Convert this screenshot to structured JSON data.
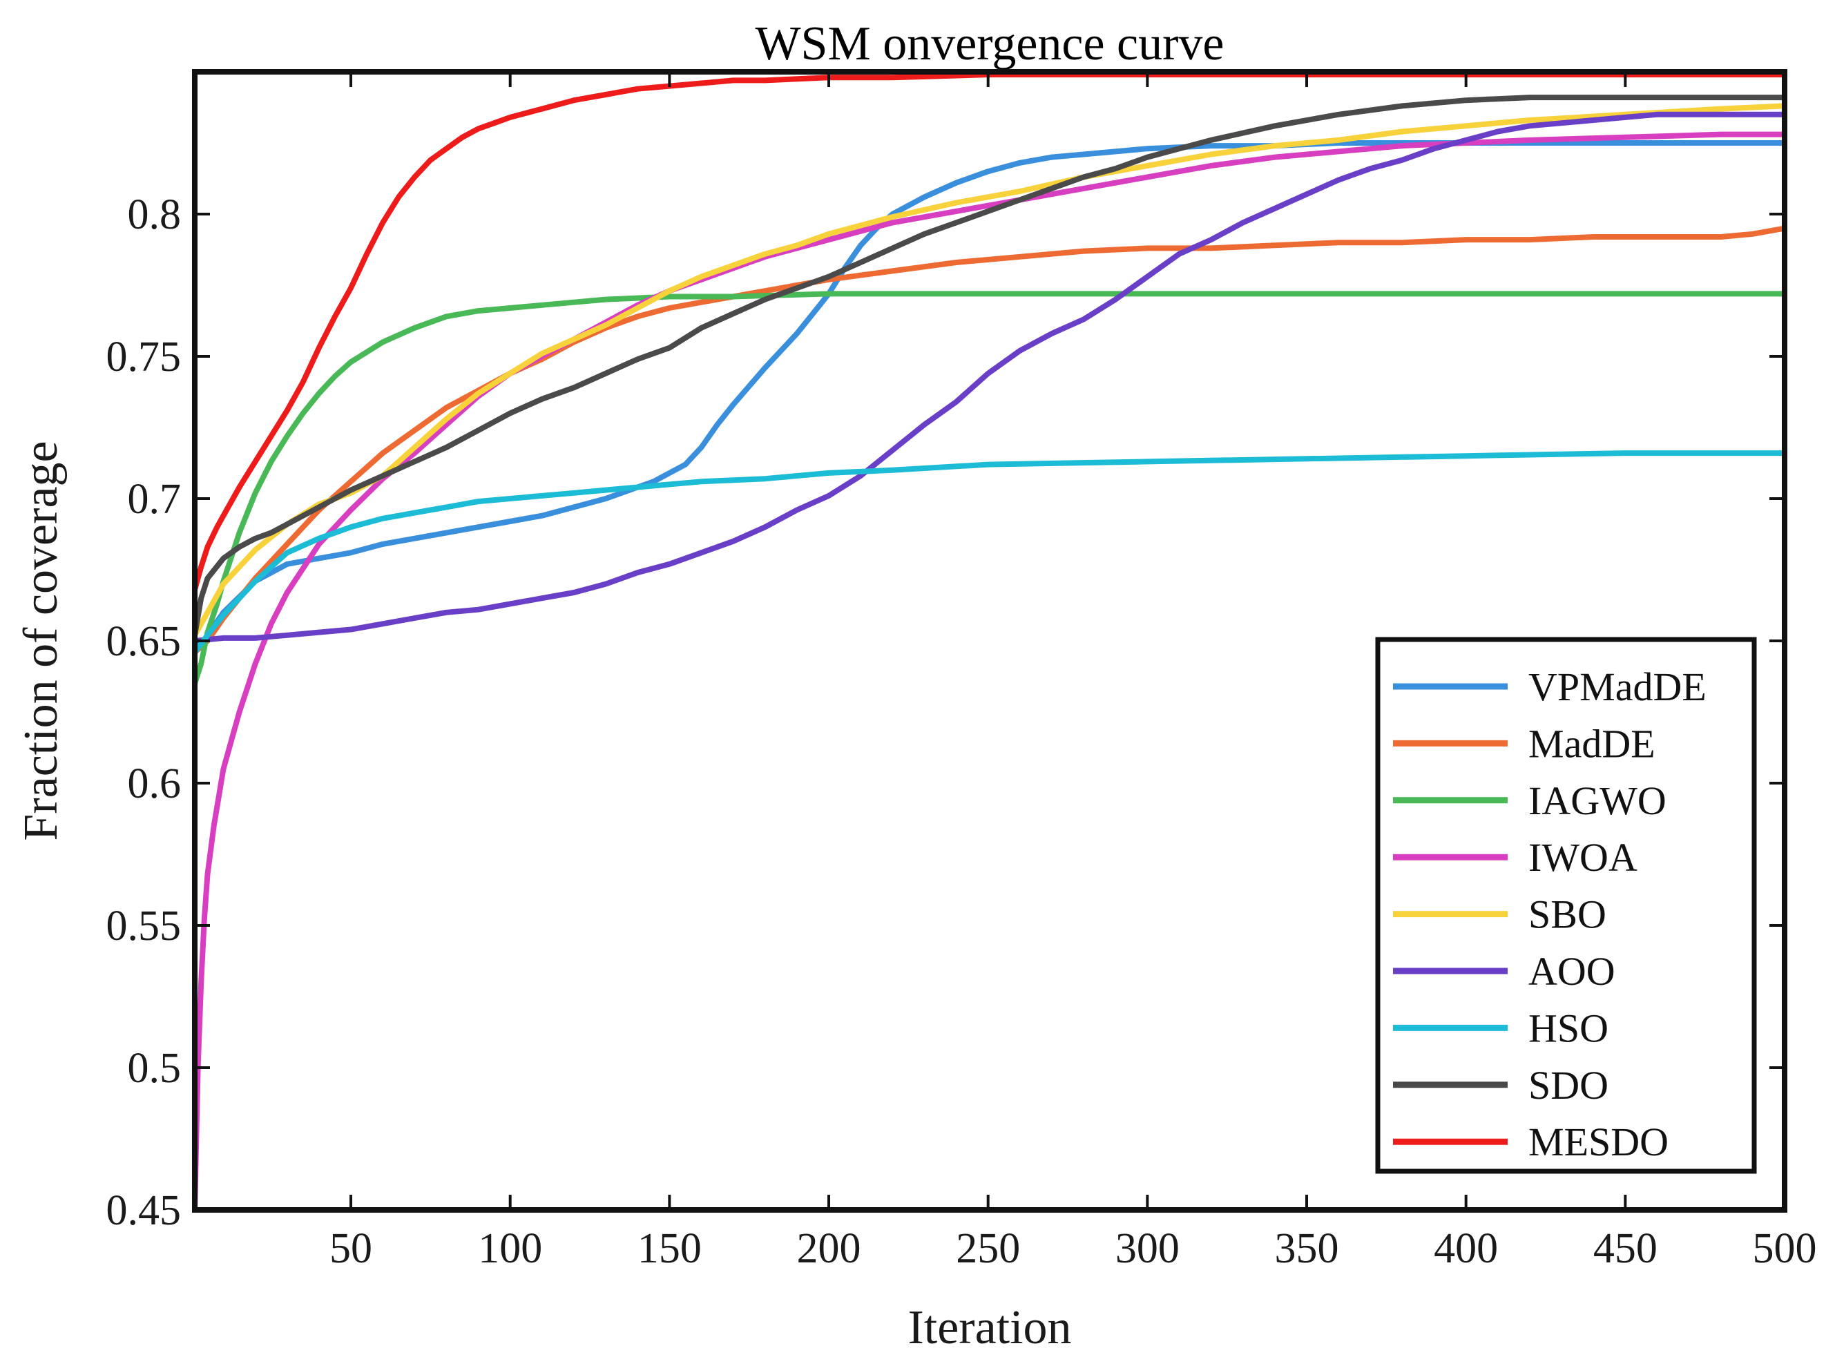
{
  "chart_data": {
    "type": "line",
    "title": "WSM onvergence curve",
    "xlabel": "Iteration",
    "ylabel": "Fraction of coverage",
    "xlim": [
      1,
      500
    ],
    "ylim": [
      0.45,
      0.85
    ],
    "xticks": [
      50,
      100,
      150,
      200,
      250,
      300,
      350,
      400,
      450,
      500
    ],
    "xtick_labels": [
      "50",
      "100",
      "150",
      "200",
      "250",
      "300",
      "350",
      "400",
      "450",
      "500"
    ],
    "yticks": [
      0.45,
      0.5,
      0.55,
      0.6,
      0.65,
      0.7,
      0.75,
      0.8
    ],
    "ytick_labels": [
      "0.45",
      "0.5",
      "0.55",
      "0.6",
      "0.65",
      "0.7",
      "0.75",
      "0.8"
    ],
    "grid": false,
    "legend_position": "bottom-right",
    "series": [
      {
        "name": "VPMadDE",
        "color": "#3a8fdc",
        "x": [
          1,
          5,
          10,
          20,
          30,
          40,
          50,
          60,
          70,
          80,
          90,
          100,
          110,
          120,
          130,
          140,
          145,
          150,
          155,
          160,
          165,
          170,
          180,
          190,
          195,
          200,
          205,
          210,
          215,
          220,
          230,
          240,
          250,
          260,
          270,
          280,
          290,
          300,
          320,
          340,
          360,
          380,
          400,
          420,
          450,
          480,
          500
        ],
        "y": [
          0.646,
          0.652,
          0.66,
          0.671,
          0.677,
          0.679,
          0.681,
          0.684,
          0.686,
          0.688,
          0.69,
          0.692,
          0.694,
          0.697,
          0.7,
          0.704,
          0.706,
          0.709,
          0.712,
          0.718,
          0.726,
          0.733,
          0.746,
          0.758,
          0.765,
          0.772,
          0.781,
          0.789,
          0.795,
          0.8,
          0.806,
          0.811,
          0.815,
          0.818,
          0.82,
          0.821,
          0.822,
          0.823,
          0.824,
          0.824,
          0.825,
          0.825,
          0.825,
          0.825,
          0.825,
          0.825,
          0.825
        ]
      },
      {
        "name": "MadDE",
        "color": "#ee6a33",
        "x": [
          1,
          5,
          10,
          20,
          30,
          40,
          50,
          60,
          70,
          80,
          90,
          100,
          110,
          120,
          130,
          140,
          150,
          160,
          170,
          180,
          190,
          200,
          220,
          240,
          260,
          280,
          300,
          320,
          340,
          360,
          380,
          400,
          420,
          440,
          460,
          480,
          490,
          500
        ],
        "y": [
          0.646,
          0.65,
          0.658,
          0.672,
          0.684,
          0.696,
          0.706,
          0.716,
          0.724,
          0.732,
          0.738,
          0.744,
          0.749,
          0.755,
          0.76,
          0.764,
          0.767,
          0.769,
          0.771,
          0.773,
          0.775,
          0.777,
          0.78,
          0.783,
          0.785,
          0.787,
          0.788,
          0.788,
          0.789,
          0.79,
          0.79,
          0.791,
          0.791,
          0.792,
          0.792,
          0.792,
          0.793,
          0.795
        ]
      },
      {
        "name": "IAGWO",
        "color": "#49b957",
        "x": [
          1,
          3,
          5,
          8,
          10,
          15,
          20,
          25,
          30,
          35,
          40,
          45,
          50,
          60,
          70,
          80,
          90,
          100,
          110,
          120,
          130,
          150,
          170,
          200,
          250,
          300,
          400,
          500
        ],
        "y": [
          0.635,
          0.642,
          0.653,
          0.663,
          0.671,
          0.688,
          0.702,
          0.713,
          0.722,
          0.73,
          0.737,
          0.743,
          0.748,
          0.755,
          0.76,
          0.764,
          0.766,
          0.767,
          0.768,
          0.769,
          0.77,
          0.771,
          0.771,
          0.772,
          0.772,
          0.772,
          0.772,
          0.772
        ]
      },
      {
        "name": "IWOA",
        "color": "#d83fc0",
        "x": [
          1,
          2,
          3,
          4,
          5,
          7,
          10,
          15,
          20,
          25,
          30,
          40,
          50,
          60,
          70,
          80,
          90,
          100,
          110,
          120,
          130,
          140,
          150,
          160,
          170,
          180,
          190,
          200,
          220,
          240,
          260,
          280,
          300,
          320,
          340,
          360,
          380,
          400,
          420,
          450,
          480,
          500
        ],
        "y": [
          0.45,
          0.5,
          0.53,
          0.552,
          0.568,
          0.585,
          0.605,
          0.625,
          0.642,
          0.656,
          0.667,
          0.684,
          0.696,
          0.707,
          0.716,
          0.726,
          0.736,
          0.744,
          0.75,
          0.756,
          0.762,
          0.768,
          0.773,
          0.777,
          0.781,
          0.785,
          0.788,
          0.791,
          0.797,
          0.801,
          0.805,
          0.809,
          0.813,
          0.817,
          0.82,
          0.822,
          0.824,
          0.825,
          0.826,
          0.827,
          0.828,
          0.828
        ]
      },
      {
        "name": "SBO",
        "color": "#f7d23b",
        "x": [
          1,
          5,
          10,
          20,
          30,
          40,
          50,
          60,
          70,
          80,
          90,
          100,
          110,
          120,
          130,
          140,
          150,
          160,
          170,
          180,
          190,
          200,
          220,
          240,
          260,
          280,
          300,
          320,
          340,
          360,
          380,
          400,
          420,
          450,
          480,
          500
        ],
        "y": [
          0.652,
          0.66,
          0.67,
          0.682,
          0.691,
          0.698,
          0.702,
          0.708,
          0.718,
          0.728,
          0.737,
          0.744,
          0.751,
          0.756,
          0.761,
          0.767,
          0.773,
          0.778,
          0.782,
          0.786,
          0.789,
          0.793,
          0.799,
          0.804,
          0.808,
          0.813,
          0.817,
          0.821,
          0.824,
          0.826,
          0.829,
          0.831,
          0.833,
          0.835,
          0.837,
          0.838
        ]
      },
      {
        "name": "AOO",
        "color": "#6a3fc8",
        "x": [
          1,
          10,
          20,
          30,
          40,
          50,
          60,
          70,
          80,
          90,
          100,
          110,
          120,
          130,
          140,
          150,
          160,
          170,
          180,
          190,
          200,
          210,
          220,
          230,
          240,
          250,
          260,
          270,
          280,
          290,
          300,
          310,
          320,
          330,
          340,
          350,
          360,
          370,
          380,
          390,
          400,
          410,
          420,
          430,
          440,
          450,
          460,
          470,
          480,
          490,
          500
        ],
        "y": [
          0.65,
          0.651,
          0.651,
          0.652,
          0.653,
          0.654,
          0.656,
          0.658,
          0.66,
          0.661,
          0.663,
          0.665,
          0.667,
          0.67,
          0.674,
          0.677,
          0.681,
          0.685,
          0.69,
          0.696,
          0.701,
          0.708,
          0.717,
          0.726,
          0.734,
          0.744,
          0.752,
          0.758,
          0.763,
          0.77,
          0.778,
          0.786,
          0.791,
          0.797,
          0.802,
          0.807,
          0.812,
          0.816,
          0.819,
          0.823,
          0.826,
          0.829,
          0.831,
          0.832,
          0.833,
          0.834,
          0.835,
          0.835,
          0.835,
          0.835,
          0.835
        ]
      },
      {
        "name": "HSO",
        "color": "#1cbcd6",
        "x": [
          1,
          5,
          10,
          15,
          20,
          25,
          30,
          40,
          50,
          60,
          70,
          80,
          90,
          100,
          110,
          120,
          130,
          140,
          150,
          160,
          180,
          200,
          220,
          250,
          300,
          350,
          400,
          450,
          500
        ],
        "y": [
          0.646,
          0.652,
          0.659,
          0.665,
          0.671,
          0.676,
          0.681,
          0.686,
          0.69,
          0.693,
          0.695,
          0.697,
          0.699,
          0.7,
          0.701,
          0.702,
          0.703,
          0.704,
          0.705,
          0.706,
          0.707,
          0.709,
          0.71,
          0.712,
          0.713,
          0.714,
          0.715,
          0.716,
          0.716
        ]
      },
      {
        "name": "SDO",
        "color": "#4a4a4a",
        "x": [
          1,
          3,
          5,
          10,
          15,
          20,
          25,
          30,
          40,
          50,
          60,
          70,
          80,
          90,
          100,
          110,
          120,
          130,
          140,
          150,
          160,
          170,
          180,
          190,
          200,
          210,
          220,
          230,
          240,
          250,
          260,
          270,
          280,
          290,
          300,
          320,
          340,
          360,
          380,
          400,
          420,
          440,
          460,
          480,
          500
        ],
        "y": [
          0.652,
          0.665,
          0.672,
          0.679,
          0.683,
          0.686,
          0.688,
          0.691,
          0.697,
          0.703,
          0.708,
          0.713,
          0.718,
          0.724,
          0.73,
          0.735,
          0.739,
          0.744,
          0.749,
          0.753,
          0.76,
          0.765,
          0.77,
          0.774,
          0.778,
          0.783,
          0.788,
          0.793,
          0.797,
          0.801,
          0.805,
          0.809,
          0.813,
          0.816,
          0.82,
          0.826,
          0.831,
          0.835,
          0.838,
          0.84,
          0.841,
          0.841,
          0.841,
          0.841,
          0.841
        ]
      },
      {
        "name": "MESDO",
        "color": "#ee1b1b",
        "x": [
          1,
          3,
          5,
          8,
          10,
          15,
          20,
          25,
          30,
          35,
          40,
          45,
          50,
          55,
          60,
          65,
          70,
          75,
          80,
          85,
          90,
          95,
          100,
          110,
          120,
          130,
          140,
          150,
          160,
          170,
          180,
          200,
          220,
          250,
          300,
          350,
          400,
          450,
          500
        ],
        "y": [
          0.668,
          0.676,
          0.683,
          0.69,
          0.694,
          0.704,
          0.713,
          0.722,
          0.731,
          0.741,
          0.753,
          0.764,
          0.774,
          0.786,
          0.797,
          0.806,
          0.813,
          0.819,
          0.823,
          0.827,
          0.83,
          0.832,
          0.834,
          0.837,
          0.84,
          0.842,
          0.844,
          0.845,
          0.846,
          0.847,
          0.847,
          0.848,
          0.848,
          0.849,
          0.849,
          0.849,
          0.849,
          0.849,
          0.849
        ]
      }
    ]
  }
}
